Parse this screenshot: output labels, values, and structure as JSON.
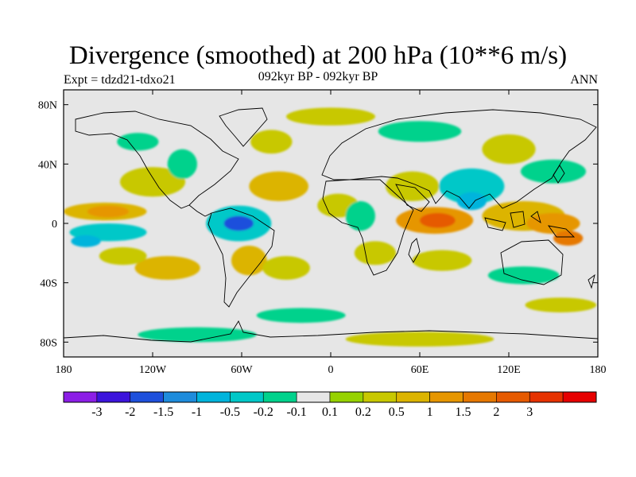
{
  "header": {
    "title": "Divergence (smoothed) at 200 hPa (10**6 m/s)",
    "experiment": "Expt = tdzd21-tdxo21",
    "period": "092kyr BP - 092kyr BP",
    "season": "ANN"
  },
  "map": {
    "lat_range": [
      -90,
      90
    ],
    "lon_range": [
      -180,
      180
    ],
    "background_color": "#e6e6e6",
    "lat_ticks": [
      {
        "value": 80,
        "label": "80N"
      },
      {
        "value": 40,
        "label": "40N"
      },
      {
        "value": 0,
        "label": "0"
      },
      {
        "value": -40,
        "label": "40S"
      },
      {
        "value": -80,
        "label": "80S"
      }
    ],
    "lon_ticks": [
      {
        "value": -180,
        "label": "180"
      },
      {
        "value": -120,
        "label": "120W"
      },
      {
        "value": -60,
        "label": "60W"
      },
      {
        "value": 0,
        "label": "0"
      },
      {
        "value": 60,
        "label": "60E"
      },
      {
        "value": 120,
        "label": "120E"
      },
      {
        "value": 180,
        "label": "180"
      }
    ]
  },
  "colorbar": {
    "colors": [
      "#8c1ee6",
      "#3c14dc",
      "#1e50dc",
      "#1e8cdc",
      "#00b4dc",
      "#00c8c8",
      "#00d28c",
      "#e6e6e6",
      "#96d200",
      "#c8c800",
      "#dcb400",
      "#e69600",
      "#e67800",
      "#e65a00",
      "#e63200",
      "#e60000"
    ],
    "labels": [
      "-3",
      "-2",
      "-1.5",
      "-1",
      "-0.5",
      "-0.2",
      "-0.1",
      "0.1",
      "0.2",
      "0.5",
      "1",
      "1.5",
      "2",
      "3"
    ]
  },
  "field_patches": [
    {
      "lon": -152,
      "lat": 8,
      "rx": 28,
      "ry": 6,
      "level": 0.5
    },
    {
      "lon": -150,
      "lat": 8,
      "rx": 14,
      "ry": 4,
      "level": 1
    },
    {
      "lon": -150,
      "lat": -6,
      "rx": 26,
      "ry": 6,
      "level": -0.5
    },
    {
      "lon": -165,
      "lat": -12,
      "rx": 10,
      "ry": 4,
      "level": -1
    },
    {
      "lon": -120,
      "lat": 28,
      "rx": 22,
      "ry": 10,
      "level": 0.2
    },
    {
      "lon": -100,
      "lat": 40,
      "rx": 10,
      "ry": 10,
      "level": -0.2
    },
    {
      "lon": -130,
      "lat": 55,
      "rx": 14,
      "ry": 6,
      "level": -0.2
    },
    {
      "lon": -110,
      "lat": -30,
      "rx": 22,
      "ry": 8,
      "level": 0.5
    },
    {
      "lon": -140,
      "lat": -22,
      "rx": 16,
      "ry": 6,
      "level": 0.2
    },
    {
      "lon": -62,
      "lat": 0,
      "rx": 22,
      "ry": 12,
      "level": -0.5
    },
    {
      "lon": -62,
      "lat": 0,
      "rx": 10,
      "ry": 5,
      "level": -2
    },
    {
      "lon": -55,
      "lat": -25,
      "rx": 12,
      "ry": 10,
      "level": 0.5
    },
    {
      "lon": -35,
      "lat": 25,
      "rx": 20,
      "ry": 10,
      "level": 0.5
    },
    {
      "lon": -40,
      "lat": 55,
      "rx": 14,
      "ry": 8,
      "level": 0.2
    },
    {
      "lon": -30,
      "lat": -30,
      "rx": 16,
      "ry": 8,
      "level": 0.2
    },
    {
      "lon": -20,
      "lat": -62,
      "rx": 30,
      "ry": 5,
      "level": -0.2
    },
    {
      "lon": 5,
      "lat": 12,
      "rx": 14,
      "ry": 8,
      "level": 0.2
    },
    {
      "lon": 20,
      "lat": 5,
      "rx": 10,
      "ry": 10,
      "level": -0.2
    },
    {
      "lon": 30,
      "lat": -20,
      "rx": 14,
      "ry": 8,
      "level": 0.2
    },
    {
      "lon": 55,
      "lat": 25,
      "rx": 18,
      "ry": 10,
      "level": 0.2
    },
    {
      "lon": 70,
      "lat": 2,
      "rx": 26,
      "ry": 9,
      "level": 1
    },
    {
      "lon": 72,
      "lat": 2,
      "rx": 12,
      "ry": 5,
      "level": 2
    },
    {
      "lon": 75,
      "lat": -25,
      "rx": 20,
      "ry": 7,
      "level": 0.2
    },
    {
      "lon": 95,
      "lat": 25,
      "rx": 22,
      "ry": 12,
      "level": -0.5
    },
    {
      "lon": 95,
      "lat": 15,
      "rx": 10,
      "ry": 6,
      "level": -1
    },
    {
      "lon": 130,
      "lat": 5,
      "rx": 28,
      "ry": 10,
      "level": 0.5
    },
    {
      "lon": 150,
      "lat": 0,
      "rx": 18,
      "ry": 7,
      "level": 1
    },
    {
      "lon": 160,
      "lat": -10,
      "rx": 10,
      "ry": 5,
      "level": 1.5
    },
    {
      "lon": 120,
      "lat": 50,
      "rx": 18,
      "ry": 10,
      "level": 0.2
    },
    {
      "lon": 150,
      "lat": 35,
      "rx": 22,
      "ry": 8,
      "level": -0.2
    },
    {
      "lon": 130,
      "lat": -35,
      "rx": 24,
      "ry": 6,
      "level": -0.2
    },
    {
      "lon": 155,
      "lat": -55,
      "rx": 24,
      "ry": 5,
      "level": 0.2
    },
    {
      "lon": 60,
      "lat": 62,
      "rx": 28,
      "ry": 7,
      "level": -0.2
    },
    {
      "lon": 0,
      "lat": 72,
      "rx": 30,
      "ry": 6,
      "level": 0.2
    },
    {
      "lon": -90,
      "lat": -75,
      "rx": 40,
      "ry": 5,
      "level": -0.2
    },
    {
      "lon": 60,
      "lat": -78,
      "rx": 50,
      "ry": 5,
      "level": 0.2
    }
  ]
}
